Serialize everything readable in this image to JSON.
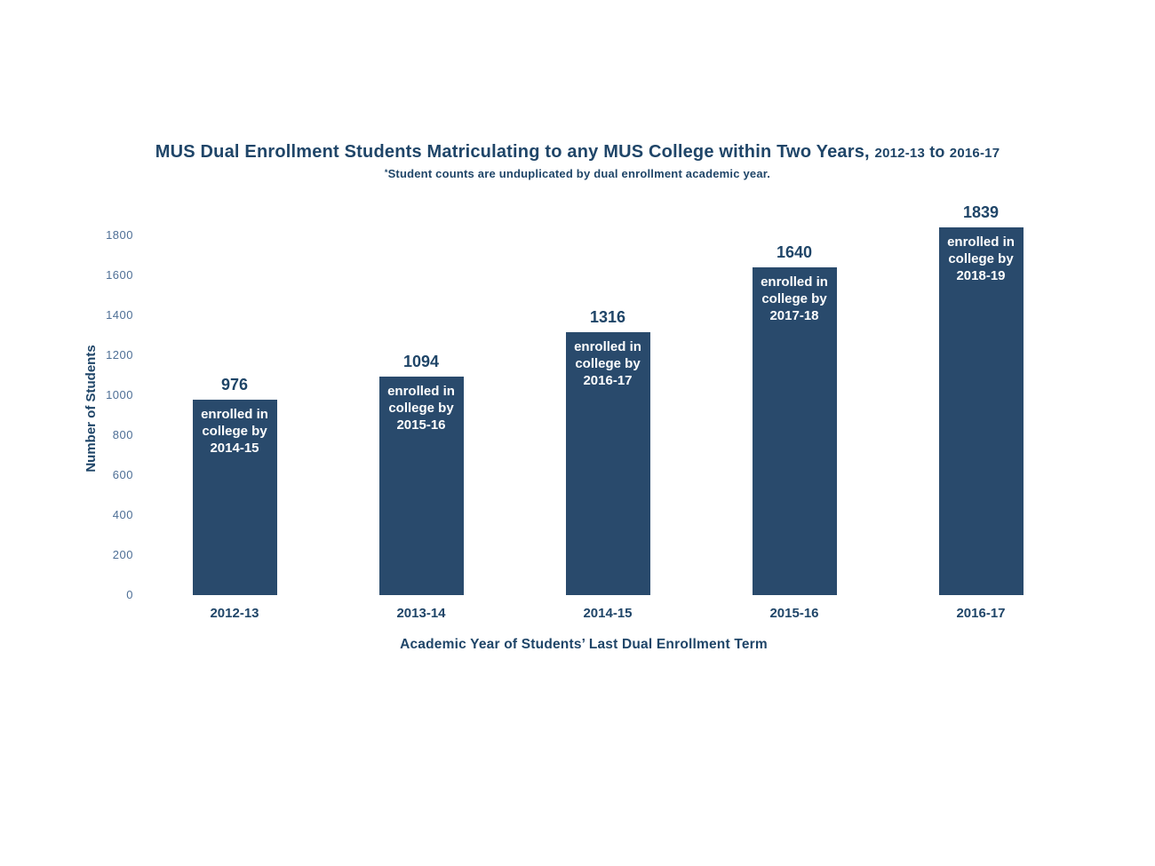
{
  "header": {
    "title_main": "MUS Dual Enrollment Students Matriculating to any MUS College within Two Years",
    "title_separator": ", ",
    "title_year_start": "2012-13",
    "title_to": " to ",
    "title_year_end": "2016-17",
    "subtitle_marker": "*",
    "subtitle_text": "Student counts are unduplicated by dual enrollment academic year."
  },
  "chart_data": {
    "type": "bar",
    "title": "MUS Dual Enrollment Students Matriculating to any MUS College within Two Years, 2012-13 to 2016-17",
    "subtitle": "*Student counts are unduplicated by dual enrollment academic year.",
    "categories": [
      "2012-13",
      "2013-14",
      "2014-15",
      "2015-16",
      "2016-17"
    ],
    "values": [
      976,
      1094,
      1316,
      1640,
      1839
    ],
    "bar_labels": [
      [
        "enrolled in",
        "college by",
        "2014-15"
      ],
      [
        "enrolled in",
        "college by",
        "2015-16"
      ],
      [
        "enrolled in",
        "college by",
        "2016-17"
      ],
      [
        "enrolled in",
        "college by",
        "2017-18"
      ],
      [
        "enrolled in",
        "college by",
        "2018-19"
      ]
    ],
    "xlabel": "Academic Year of Students’ Last Dual Enrollment Term",
    "ylabel": "Number of Students",
    "ylim": [
      0,
      1800
    ],
    "ytick_step": 200,
    "yticks": [
      0,
      200,
      400,
      600,
      800,
      1000,
      1200,
      1400,
      1600,
      1800
    ],
    "grid": false,
    "legend": false,
    "colors": {
      "bar": "#294A6C",
      "title_text": "#1F4568",
      "value_label": "#1F4568",
      "category_label": "#1F4568",
      "axis_title": "#1F4568",
      "tick_label": "#4E6F96",
      "bar_inside_text": "#FFFFFF",
      "background": "#FFFFFF"
    }
  }
}
